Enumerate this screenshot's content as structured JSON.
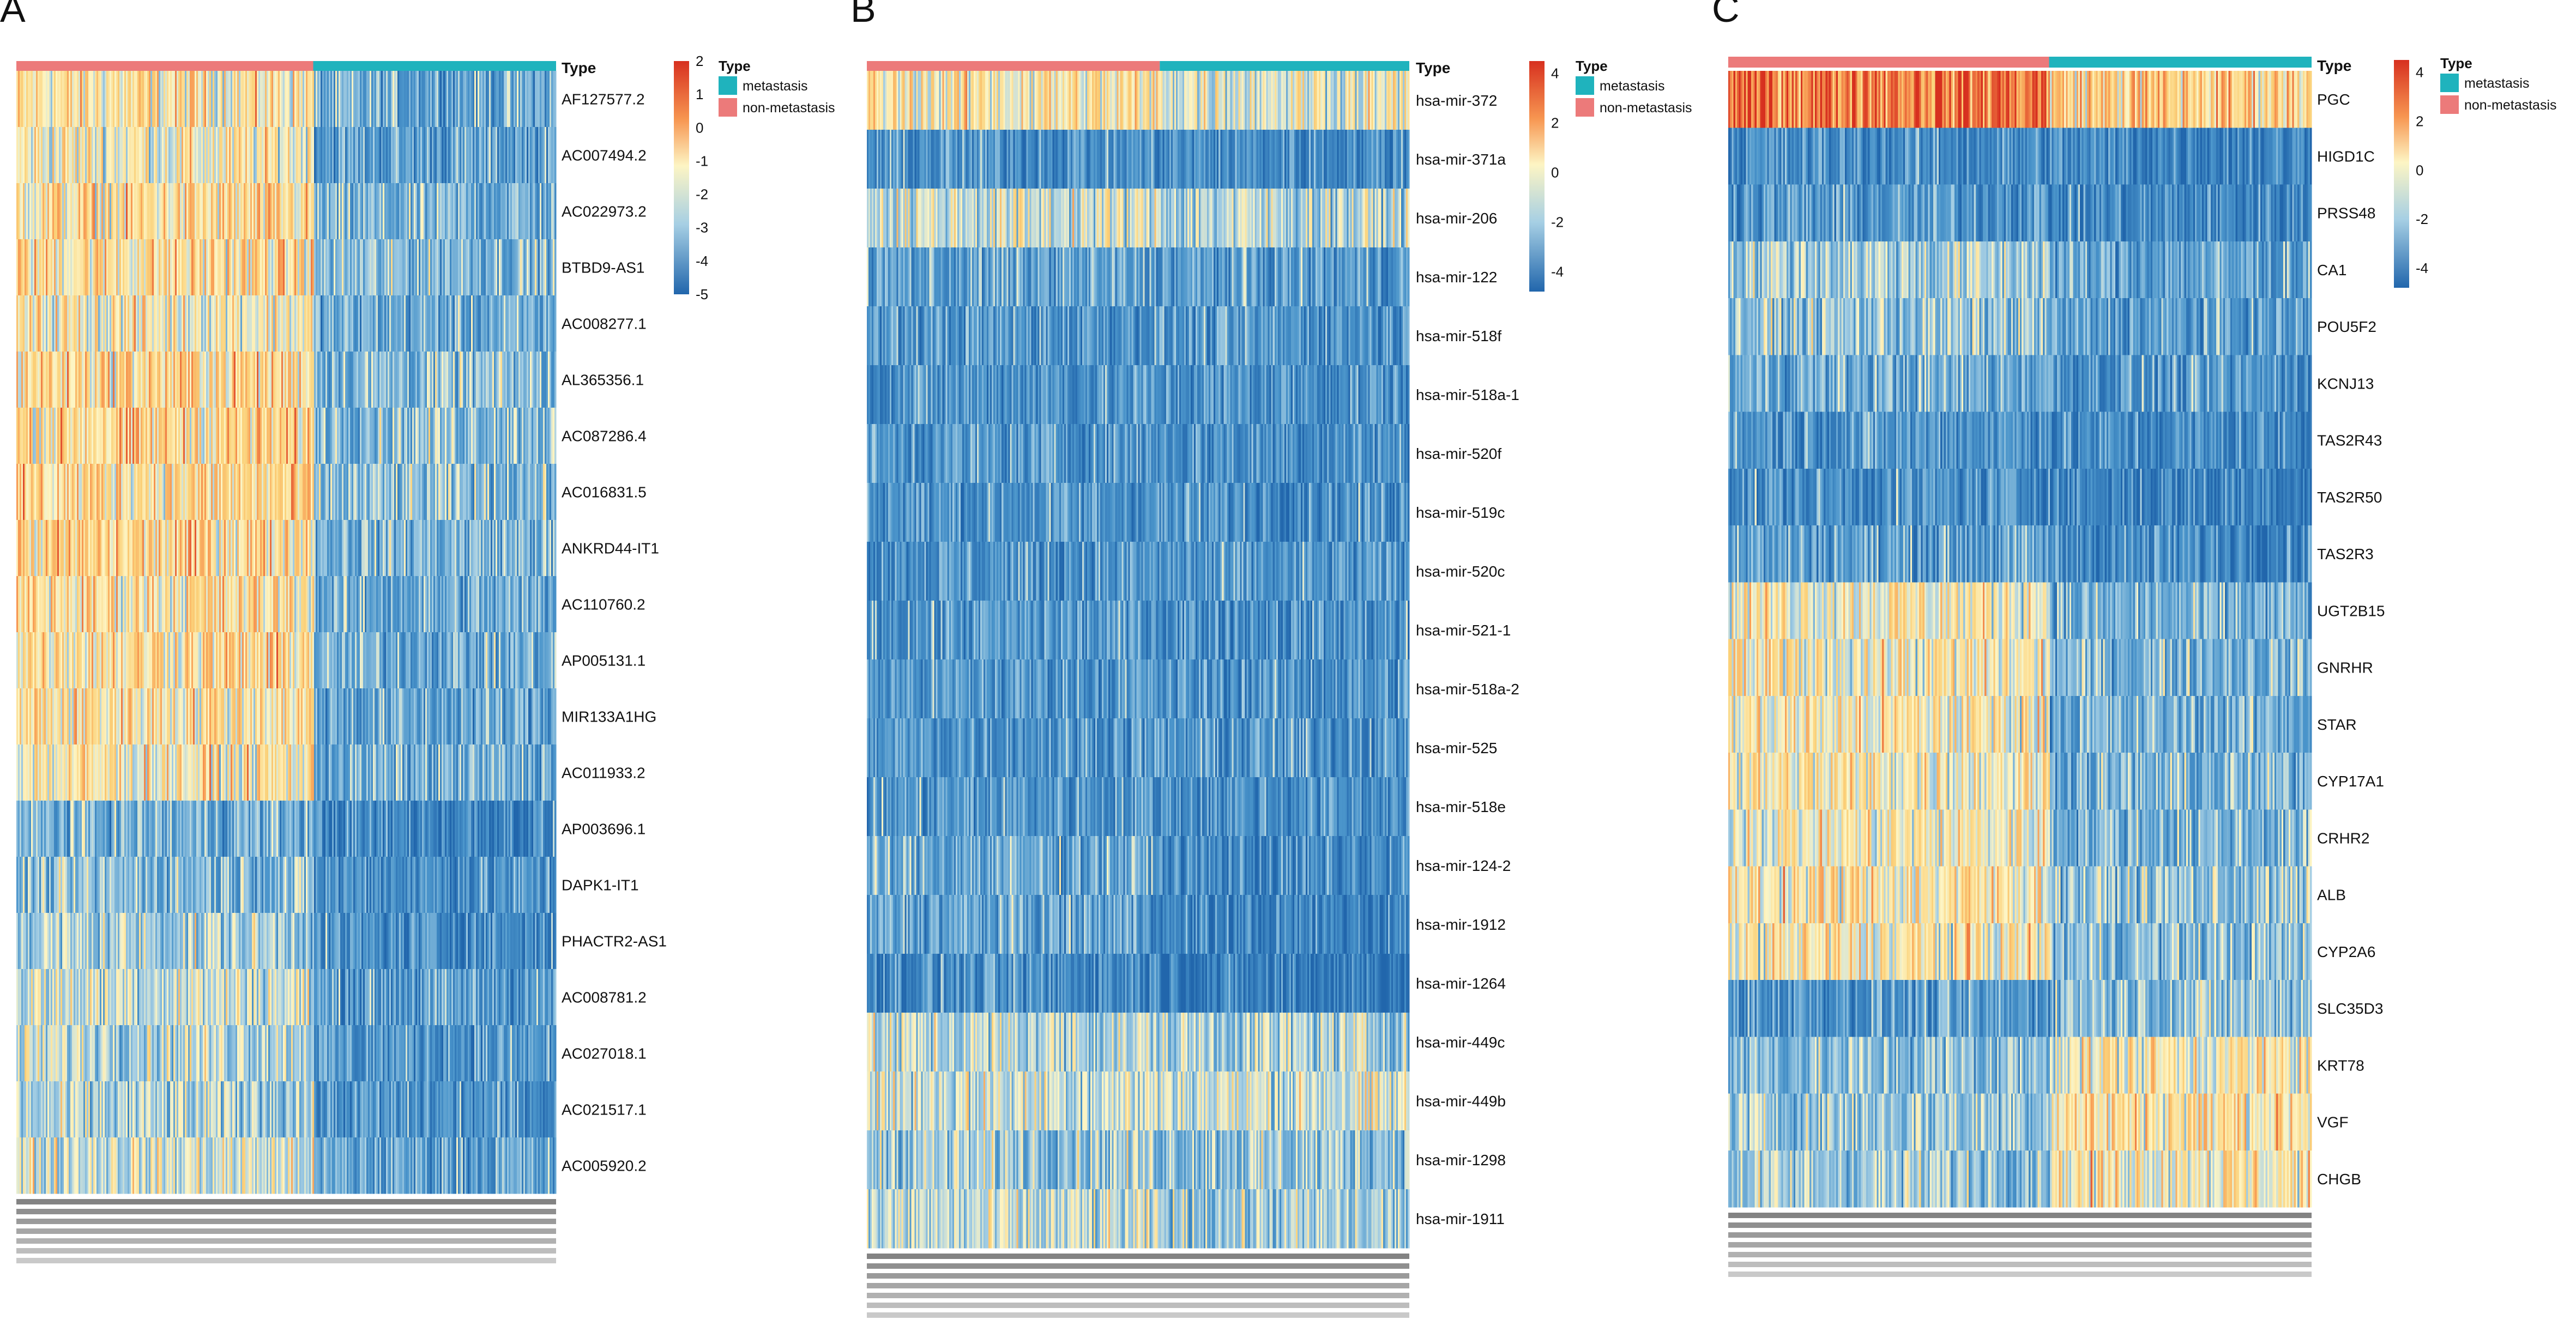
{
  "colors": {
    "metastasis": "#1fb3bd",
    "non_metastasis": "#ec7a7a",
    "scale": [
      "#2166ac",
      "#4b95cb",
      "#a6cfe4",
      "#fdf5c4",
      "#fbd179",
      "#f79651",
      "#d7301f"
    ]
  },
  "chart_data": [
    {
      "panel": "A",
      "type": "heatmap",
      "annotation_label": "Type",
      "legend": {
        "title": "Type",
        "entries": [
          "metastasis",
          "non-metastasis"
        ]
      },
      "scale": {
        "ticks": [
          2,
          1,
          0,
          -1,
          -2,
          -3,
          -4,
          -5
        ],
        "min": -5,
        "max": 2
      },
      "groups": [
        {
          "name": "non-metastasis",
          "fraction": 0.55
        },
        {
          "name": "metastasis",
          "fraction": 0.45
        }
      ],
      "rows": [
        {
          "label": "AF127577.2",
          "first_group_mean": 0.4,
          "second_group_mean": -2.4
        },
        {
          "label": "AC007494.2",
          "first_group_mean": 0.1,
          "second_group_mean": -2.7
        },
        {
          "label": "AC022973.2",
          "first_group_mean": 0.6,
          "second_group_mean": -2.2
        },
        {
          "label": "BTBD9-AS1",
          "first_group_mean": 0.7,
          "second_group_mean": -1.8
        },
        {
          "label": "AC008277.1",
          "first_group_mean": 0.2,
          "second_group_mean": -2.4
        },
        {
          "label": "AL365356.1",
          "first_group_mean": 0.9,
          "second_group_mean": -1.8
        },
        {
          "label": "AC087286.4",
          "first_group_mean": 0.9,
          "second_group_mean": -1.5
        },
        {
          "label": "AC016831.5",
          "first_group_mean": 0.8,
          "second_group_mean": -1.8
        },
        {
          "label": "ANKRD44-IT1",
          "first_group_mean": 0.9,
          "second_group_mean": -2.0
        },
        {
          "label": "AC110760.2",
          "first_group_mean": 0.6,
          "second_group_mean": -2.4
        },
        {
          "label": "AP005131.1",
          "first_group_mean": 0.8,
          "second_group_mean": -2.3
        },
        {
          "label": "MIR133A1HG",
          "first_group_mean": 0.6,
          "second_group_mean": -2.5
        },
        {
          "label": "AC011933.2",
          "first_group_mean": 0.3,
          "second_group_mean": -2.3
        },
        {
          "label": "AP003696.1",
          "first_group_mean": -2.2,
          "second_group_mean": -3.6
        },
        {
          "label": "DAPK1-IT1",
          "first_group_mean": -1.8,
          "second_group_mean": -3.2
        },
        {
          "label": "PHACTR2-AS1",
          "first_group_mean": -1.2,
          "second_group_mean": -3.4
        },
        {
          "label": "AC008781.2",
          "first_group_mean": -0.6,
          "second_group_mean": -2.8
        },
        {
          "label": "AC027018.1",
          "first_group_mean": -0.8,
          "second_group_mean": -3.0
        },
        {
          "label": "AC021517.1",
          "first_group_mean": -1.3,
          "second_group_mean": -3.2
        },
        {
          "label": "AC005920.2",
          "first_group_mean": -0.5,
          "second_group_mean": -2.6
        }
      ]
    },
    {
      "panel": "B",
      "type": "heatmap",
      "annotation_label": "Type",
      "legend": {
        "title": "Type",
        "entries": [
          "metastasis",
          "non-metastasis"
        ]
      },
      "scale": {
        "ticks": [
          4,
          2,
          0,
          -2,
          -4
        ],
        "min": -5,
        "max": 5
      },
      "groups": [
        {
          "name": "non-metastasis",
          "fraction": 0.54
        },
        {
          "name": "metastasis",
          "fraction": 0.46
        }
      ],
      "rows": [
        {
          "label": "hsa-mir-372",
          "first_group_mean": 0.3,
          "second_group_mean": -0.2
        },
        {
          "label": "hsa-mir-371a",
          "first_group_mean": -3.2,
          "second_group_mean": -3.4
        },
        {
          "label": "hsa-mir-206",
          "first_group_mean": -0.6,
          "second_group_mean": -1.0
        },
        {
          "label": "hsa-mir-122",
          "first_group_mean": -2.7,
          "second_group_mean": -2.9
        },
        {
          "label": "hsa-mir-518f",
          "first_group_mean": -3.0,
          "second_group_mean": -3.1
        },
        {
          "label": "hsa-mir-518a-1",
          "first_group_mean": -3.1,
          "second_group_mean": -3.2
        },
        {
          "label": "hsa-mir-520f",
          "first_group_mean": -3.0,
          "second_group_mean": -3.2
        },
        {
          "label": "hsa-mir-519c",
          "first_group_mean": -3.1,
          "second_group_mean": -3.2
        },
        {
          "label": "hsa-mir-520c",
          "first_group_mean": -3.1,
          "second_group_mean": -3.2
        },
        {
          "label": "hsa-mir-521-1",
          "first_group_mean": -3.0,
          "second_group_mean": -3.2
        },
        {
          "label": "hsa-mir-518a-2",
          "first_group_mean": -3.0,
          "second_group_mean": -3.2
        },
        {
          "label": "hsa-mir-525",
          "first_group_mean": -3.0,
          "second_group_mean": -3.1
        },
        {
          "label": "hsa-mir-518e",
          "first_group_mean": -3.0,
          "second_group_mean": -3.2
        },
        {
          "label": "hsa-mir-124-2",
          "first_group_mean": -2.4,
          "second_group_mean": -3.6
        },
        {
          "label": "hsa-mir-1912",
          "first_group_mean": -2.6,
          "second_group_mean": -3.8
        },
        {
          "label": "hsa-mir-1264",
          "first_group_mean": -3.4,
          "second_group_mean": -4.0
        },
        {
          "label": "hsa-mir-449c",
          "first_group_mean": -1.0,
          "second_group_mean": -1.2
        },
        {
          "label": "hsa-mir-449b",
          "first_group_mean": -0.6,
          "second_group_mean": -0.6
        },
        {
          "label": "hsa-mir-1298",
          "first_group_mean": -1.3,
          "second_group_mean": -1.5
        },
        {
          "label": "hsa-mir-1911",
          "first_group_mean": -1.0,
          "second_group_mean": -1.4
        }
      ]
    },
    {
      "panel": "C",
      "type": "heatmap",
      "annotation_label": "Type",
      "legend": {
        "title": "Type",
        "entries": [
          "metastasis",
          "non-metastasis"
        ]
      },
      "scale": {
        "ticks": [
          4,
          2,
          0,
          -2,
          -4
        ],
        "min": -5,
        "max": 5
      },
      "groups": [
        {
          "name": "non-metastasis",
          "fraction": 0.55
        },
        {
          "name": "metastasis",
          "fraction": 0.45
        }
      ],
      "rows": [
        {
          "label": "PGC",
          "first_group_mean": 3.0,
          "second_group_mean": 1.1
        },
        {
          "label": "HIGD1C",
          "first_group_mean": -3.4,
          "second_group_mean": -3.6
        },
        {
          "label": "PRSS48",
          "first_group_mean": -3.0,
          "second_group_mean": -3.6
        },
        {
          "label": "CA1",
          "first_group_mean": -1.2,
          "second_group_mean": -2.6
        },
        {
          "label": "POU5F2",
          "first_group_mean": -1.6,
          "second_group_mean": -2.9
        },
        {
          "label": "KCNJ13",
          "first_group_mean": -2.3,
          "second_group_mean": -3.1
        },
        {
          "label": "TAS2R43",
          "first_group_mean": -3.0,
          "second_group_mean": -3.5
        },
        {
          "label": "TAS2R50",
          "first_group_mean": -3.3,
          "second_group_mean": -3.7
        },
        {
          "label": "TAS2R3",
          "first_group_mean": -2.7,
          "second_group_mean": -3.4
        },
        {
          "label": "UGT2B15",
          "first_group_mean": 0.2,
          "second_group_mean": -2.3
        },
        {
          "label": "GNRHR",
          "first_group_mean": 0.1,
          "second_group_mean": -2.0
        },
        {
          "label": "STAR",
          "first_group_mean": 0.2,
          "second_group_mean": -2.2
        },
        {
          "label": "CYP17A1",
          "first_group_mean": 0.2,
          "second_group_mean": -2.1
        },
        {
          "label": "CRHR2",
          "first_group_mean": 0.1,
          "second_group_mean": -2.0
        },
        {
          "label": "ALB",
          "first_group_mean": 0.4,
          "second_group_mean": -1.6
        },
        {
          "label": "CYP2A6",
          "first_group_mean": 0.2,
          "second_group_mean": -1.8
        },
        {
          "label": "SLC35D3",
          "first_group_mean": -3.0,
          "second_group_mean": -1.6
        },
        {
          "label": "KRT78",
          "first_group_mean": -1.8,
          "second_group_mean": 0.2
        },
        {
          "label": "VGF",
          "first_group_mean": -1.4,
          "second_group_mean": 0.6
        },
        {
          "label": "CHGB",
          "first_group_mean": -1.4,
          "second_group_mean": 0.3
        }
      ]
    }
  ]
}
